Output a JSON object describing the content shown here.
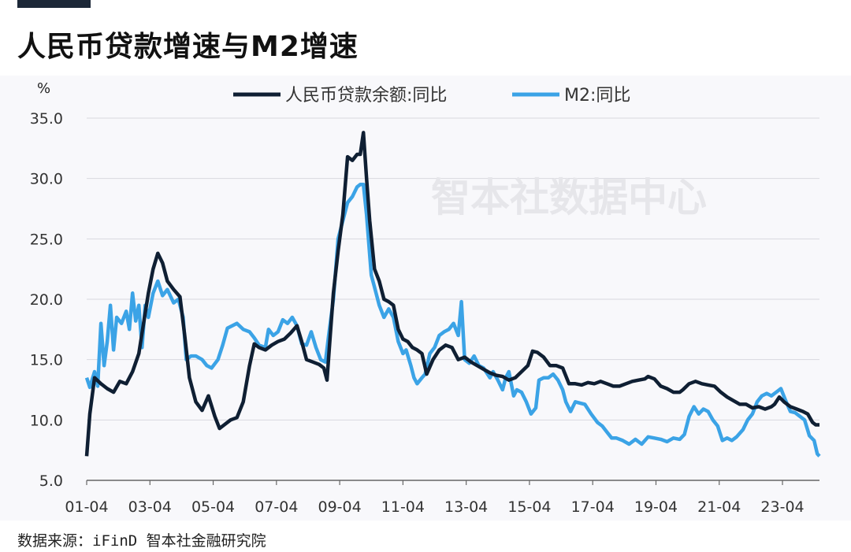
{
  "title": "人民币贷款增速与M2增速",
  "source": "数据来源：iFinD 智本社金融研究院",
  "watermark": "智本社数据中心",
  "chart_data": {
    "type": "line",
    "ylabel": "%",
    "ylim": [
      5,
      35
    ],
    "yticks": [
      5.0,
      10.0,
      15.0,
      20.0,
      25.0,
      30.0,
      35.0
    ],
    "ytick_labels": [
      "5.0",
      "10.0",
      "15.0",
      "20.0",
      "25.0",
      "30.0",
      "35.0"
    ],
    "xlim": [
      2001.25,
      2024.42
    ],
    "xticks": [
      2001.25,
      2003.25,
      2005.25,
      2007.25,
      2009.25,
      2011.25,
      2013.25,
      2015.25,
      2017.25,
      2019.25,
      2021.25,
      2023.25
    ],
    "xtick_labels": [
      "01-04",
      "03-04",
      "05-04",
      "07-04",
      "09-04",
      "11-04",
      "13-04",
      "15-04",
      "17-04",
      "19-04",
      "21-04",
      "23-04"
    ],
    "grid": "horizontal",
    "legend": "top",
    "series": [
      {
        "name": "人民币贷款余额:同比",
        "color": "#0f1f33",
        "points": [
          [
            2001.25,
            7.0
          ],
          [
            2001.35,
            10.5
          ],
          [
            2001.5,
            13.5
          ],
          [
            2001.7,
            13.0
          ],
          [
            2001.9,
            12.6
          ],
          [
            2002.1,
            12.3
          ],
          [
            2002.3,
            13.2
          ],
          [
            2002.5,
            13.0
          ],
          [
            2002.7,
            14.0
          ],
          [
            2002.9,
            15.5
          ],
          [
            2003.05,
            18.0
          ],
          [
            2003.2,
            20.5
          ],
          [
            2003.35,
            22.5
          ],
          [
            2003.5,
            23.8
          ],
          [
            2003.65,
            23.0
          ],
          [
            2003.8,
            21.5
          ],
          [
            2004.0,
            20.8
          ],
          [
            2004.2,
            20.2
          ],
          [
            2004.35,
            17.0
          ],
          [
            2004.5,
            13.5
          ],
          [
            2004.7,
            11.5
          ],
          [
            2004.9,
            10.8
          ],
          [
            2005.1,
            12.0
          ],
          [
            2005.3,
            10.3
          ],
          [
            2005.45,
            9.3
          ],
          [
            2005.6,
            9.6
          ],
          [
            2005.8,
            10.0
          ],
          [
            2006.0,
            10.2
          ],
          [
            2006.2,
            11.5
          ],
          [
            2006.4,
            14.5
          ],
          [
            2006.55,
            16.3
          ],
          [
            2006.7,
            16.0
          ],
          [
            2006.9,
            15.8
          ],
          [
            2007.1,
            16.2
          ],
          [
            2007.3,
            16.5
          ],
          [
            2007.5,
            16.7
          ],
          [
            2007.7,
            17.2
          ],
          [
            2007.9,
            17.8
          ],
          [
            2008.05,
            16.5
          ],
          [
            2008.2,
            15.0
          ],
          [
            2008.4,
            14.8
          ],
          [
            2008.6,
            14.6
          ],
          [
            2008.75,
            14.3
          ],
          [
            2008.85,
            13.3
          ],
          [
            2008.95,
            17.0
          ],
          [
            2009.05,
            20.5
          ],
          [
            2009.2,
            24.0
          ],
          [
            2009.35,
            27.0
          ],
          [
            2009.5,
            31.8
          ],
          [
            2009.65,
            31.5
          ],
          [
            2009.8,
            32.0
          ],
          [
            2009.9,
            32.0
          ],
          [
            2010.0,
            33.8
          ],
          [
            2010.1,
            30.0
          ],
          [
            2010.2,
            26.5
          ],
          [
            2010.35,
            22.5
          ],
          [
            2010.5,
            21.5
          ],
          [
            2010.65,
            20.0
          ],
          [
            2010.8,
            19.8
          ],
          [
            2010.95,
            19.5
          ],
          [
            2011.1,
            17.5
          ],
          [
            2011.25,
            16.7
          ],
          [
            2011.4,
            16.5
          ],
          [
            2011.55,
            16.0
          ],
          [
            2011.7,
            15.8
          ],
          [
            2011.85,
            15.5
          ],
          [
            2012.0,
            13.8
          ],
          [
            2012.2,
            15.0
          ],
          [
            2012.4,
            15.8
          ],
          [
            2012.6,
            16.2
          ],
          [
            2012.8,
            16.0
          ],
          [
            2013.0,
            15.0
          ],
          [
            2013.2,
            15.2
          ],
          [
            2013.4,
            14.8
          ],
          [
            2013.6,
            14.5
          ],
          [
            2013.8,
            14.2
          ],
          [
            2014.0,
            13.9
          ],
          [
            2014.2,
            13.7
          ],
          [
            2014.4,
            13.6
          ],
          [
            2014.6,
            13.3
          ],
          [
            2014.8,
            13.5
          ],
          [
            2015.0,
            14.0
          ],
          [
            2015.2,
            14.5
          ],
          [
            2015.35,
            15.7
          ],
          [
            2015.5,
            15.6
          ],
          [
            2015.7,
            15.2
          ],
          [
            2015.9,
            14.5
          ],
          [
            2016.1,
            14.5
          ],
          [
            2016.3,
            14.3
          ],
          [
            2016.5,
            13.0
          ],
          [
            2016.7,
            13.0
          ],
          [
            2016.9,
            12.9
          ],
          [
            2017.1,
            13.1
          ],
          [
            2017.3,
            13.0
          ],
          [
            2017.5,
            13.2
          ],
          [
            2017.7,
            13.0
          ],
          [
            2017.9,
            12.8
          ],
          [
            2018.1,
            12.8
          ],
          [
            2018.3,
            13.0
          ],
          [
            2018.5,
            13.2
          ],
          [
            2018.7,
            13.3
          ],
          [
            2018.9,
            13.4
          ],
          [
            2019.0,
            13.6
          ],
          [
            2019.2,
            13.4
          ],
          [
            2019.4,
            12.8
          ],
          [
            2019.6,
            12.6
          ],
          [
            2019.8,
            12.3
          ],
          [
            2020.0,
            12.3
          ],
          [
            2020.1,
            12.5
          ],
          [
            2020.3,
            13.0
          ],
          [
            2020.5,
            13.2
          ],
          [
            2020.7,
            13.0
          ],
          [
            2020.9,
            12.9
          ],
          [
            2021.1,
            12.8
          ],
          [
            2021.3,
            12.3
          ],
          [
            2021.5,
            11.9
          ],
          [
            2021.7,
            11.6
          ],
          [
            2021.9,
            11.3
          ],
          [
            2022.1,
            11.3
          ],
          [
            2022.3,
            11.0
          ],
          [
            2022.5,
            11.1
          ],
          [
            2022.7,
            10.9
          ],
          [
            2022.9,
            11.1
          ],
          [
            2023.0,
            11.3
          ],
          [
            2023.15,
            11.9
          ],
          [
            2023.3,
            11.5
          ],
          [
            2023.5,
            11.1
          ],
          [
            2023.7,
            10.9
          ],
          [
            2023.9,
            10.7
          ],
          [
            2024.05,
            10.5
          ],
          [
            2024.2,
            9.8
          ],
          [
            2024.3,
            9.6
          ],
          [
            2024.42,
            9.6
          ]
        ]
      },
      {
        "name": "M2:同比",
        "color": "#3ba3e6",
        "points": [
          [
            2001.25,
            13.5
          ],
          [
            2001.35,
            12.7
          ],
          [
            2001.5,
            14.0
          ],
          [
            2001.6,
            12.8
          ],
          [
            2001.7,
            18.0
          ],
          [
            2001.8,
            14.5
          ],
          [
            2001.9,
            16.5
          ],
          [
            2002.0,
            19.5
          ],
          [
            2002.1,
            15.8
          ],
          [
            2002.2,
            18.5
          ],
          [
            2002.35,
            18.0
          ],
          [
            2002.5,
            19.0
          ],
          [
            2002.6,
            17.5
          ],
          [
            2002.7,
            20.5
          ],
          [
            2002.8,
            18.2
          ],
          [
            2002.9,
            19.5
          ],
          [
            2003.0,
            16.0
          ],
          [
            2003.1,
            19.5
          ],
          [
            2003.2,
            18.5
          ],
          [
            2003.35,
            20.5
          ],
          [
            2003.5,
            21.5
          ],
          [
            2003.65,
            20.3
          ],
          [
            2003.8,
            20.8
          ],
          [
            2004.0,
            19.7
          ],
          [
            2004.15,
            20.0
          ],
          [
            2004.3,
            18.5
          ],
          [
            2004.4,
            15.0
          ],
          [
            2004.55,
            15.3
          ],
          [
            2004.7,
            15.3
          ],
          [
            2004.9,
            15.0
          ],
          [
            2005.05,
            14.5
          ],
          [
            2005.2,
            14.3
          ],
          [
            2005.4,
            15.0
          ],
          [
            2005.55,
            16.2
          ],
          [
            2005.7,
            17.6
          ],
          [
            2005.85,
            17.8
          ],
          [
            2006.0,
            18.0
          ],
          [
            2006.2,
            17.5
          ],
          [
            2006.4,
            17.3
          ],
          [
            2006.55,
            16.8
          ],
          [
            2006.7,
            16.2
          ],
          [
            2006.9,
            16.0
          ],
          [
            2007.0,
            17.5
          ],
          [
            2007.15,
            17.0
          ],
          [
            2007.3,
            17.3
          ],
          [
            2007.45,
            18.3
          ],
          [
            2007.6,
            18.0
          ],
          [
            2007.75,
            18.5
          ],
          [
            2007.9,
            17.8
          ],
          [
            2008.05,
            16.3
          ],
          [
            2008.2,
            16.2
          ],
          [
            2008.35,
            17.3
          ],
          [
            2008.5,
            16.0
          ],
          [
            2008.65,
            15.0
          ],
          [
            2008.8,
            14.8
          ],
          [
            2008.9,
            17.0
          ],
          [
            2009.05,
            20.0
          ],
          [
            2009.2,
            25.0
          ],
          [
            2009.35,
            26.5
          ],
          [
            2009.5,
            28.0
          ],
          [
            2009.65,
            28.5
          ],
          [
            2009.8,
            29.3
          ],
          [
            2009.9,
            29.5
          ],
          [
            2010.0,
            29.5
          ],
          [
            2010.1,
            27.0
          ],
          [
            2010.25,
            22.0
          ],
          [
            2010.35,
            21.0
          ],
          [
            2010.5,
            19.5
          ],
          [
            2010.65,
            18.5
          ],
          [
            2010.8,
            19.2
          ],
          [
            2010.95,
            18.5
          ],
          [
            2011.1,
            16.5
          ],
          [
            2011.25,
            15.5
          ],
          [
            2011.35,
            15.8
          ],
          [
            2011.5,
            14.5
          ],
          [
            2011.6,
            13.5
          ],
          [
            2011.7,
            13.0
          ],
          [
            2011.85,
            13.5
          ],
          [
            2011.95,
            13.8
          ],
          [
            2012.1,
            15.5
          ],
          [
            2012.25,
            16.0
          ],
          [
            2012.4,
            17.0
          ],
          [
            2012.55,
            17.3
          ],
          [
            2012.7,
            17.5
          ],
          [
            2012.85,
            18.0
          ],
          [
            2013.0,
            17.0
          ],
          [
            2013.1,
            19.8
          ],
          [
            2013.2,
            15.0
          ],
          [
            2013.35,
            14.7
          ],
          [
            2013.5,
            15.3
          ],
          [
            2013.65,
            14.5
          ],
          [
            2013.8,
            14.3
          ],
          [
            2014.0,
            13.5
          ],
          [
            2014.1,
            14.0
          ],
          [
            2014.25,
            13.3
          ],
          [
            2014.4,
            12.5
          ],
          [
            2014.5,
            13.5
          ],
          [
            2014.6,
            14.0
          ],
          [
            2014.75,
            12.0
          ],
          [
            2014.85,
            12.5
          ],
          [
            2015.0,
            12.3
          ],
          [
            2015.15,
            11.5
          ],
          [
            2015.3,
            10.5
          ],
          [
            2015.45,
            11.0
          ],
          [
            2015.55,
            13.3
          ],
          [
            2015.7,
            13.5
          ],
          [
            2015.85,
            13.5
          ],
          [
            2016.0,
            13.8
          ],
          [
            2016.15,
            13.3
          ],
          [
            2016.3,
            12.5
          ],
          [
            2016.4,
            11.5
          ],
          [
            2016.55,
            10.7
          ],
          [
            2016.7,
            11.5
          ],
          [
            2016.85,
            11.4
          ],
          [
            2017.0,
            11.3
          ],
          [
            2017.2,
            10.5
          ],
          [
            2017.4,
            9.8
          ],
          [
            2017.55,
            9.5
          ],
          [
            2017.7,
            9.0
          ],
          [
            2017.85,
            8.5
          ],
          [
            2018.0,
            8.5
          ],
          [
            2018.2,
            8.3
          ],
          [
            2018.4,
            8.0
          ],
          [
            2018.6,
            8.4
          ],
          [
            2018.8,
            8.0
          ],
          [
            2019.0,
            8.6
          ],
          [
            2019.2,
            8.5
          ],
          [
            2019.4,
            8.4
          ],
          [
            2019.6,
            8.2
          ],
          [
            2019.8,
            8.5
          ],
          [
            2020.0,
            8.4
          ],
          [
            2020.15,
            8.8
          ],
          [
            2020.3,
            10.3
          ],
          [
            2020.45,
            11.1
          ],
          [
            2020.6,
            10.5
          ],
          [
            2020.75,
            10.9
          ],
          [
            2020.9,
            10.7
          ],
          [
            2021.05,
            10.0
          ],
          [
            2021.2,
            9.5
          ],
          [
            2021.35,
            8.3
          ],
          [
            2021.5,
            8.5
          ],
          [
            2021.65,
            8.3
          ],
          [
            2021.8,
            8.6
          ],
          [
            2022.0,
            9.2
          ],
          [
            2022.15,
            10.0
          ],
          [
            2022.3,
            10.5
          ],
          [
            2022.45,
            11.5
          ],
          [
            2022.6,
            12.0
          ],
          [
            2022.75,
            12.2
          ],
          [
            2022.9,
            12.0
          ],
          [
            2023.05,
            12.3
          ],
          [
            2023.2,
            12.6
          ],
          [
            2023.35,
            11.6
          ],
          [
            2023.5,
            10.7
          ],
          [
            2023.65,
            10.6
          ],
          [
            2023.8,
            10.3
          ],
          [
            2023.95,
            10.0
          ],
          [
            2024.1,
            8.7
          ],
          [
            2024.25,
            8.3
          ],
          [
            2024.35,
            7.2
          ],
          [
            2024.42,
            7.0
          ]
        ]
      }
    ]
  }
}
